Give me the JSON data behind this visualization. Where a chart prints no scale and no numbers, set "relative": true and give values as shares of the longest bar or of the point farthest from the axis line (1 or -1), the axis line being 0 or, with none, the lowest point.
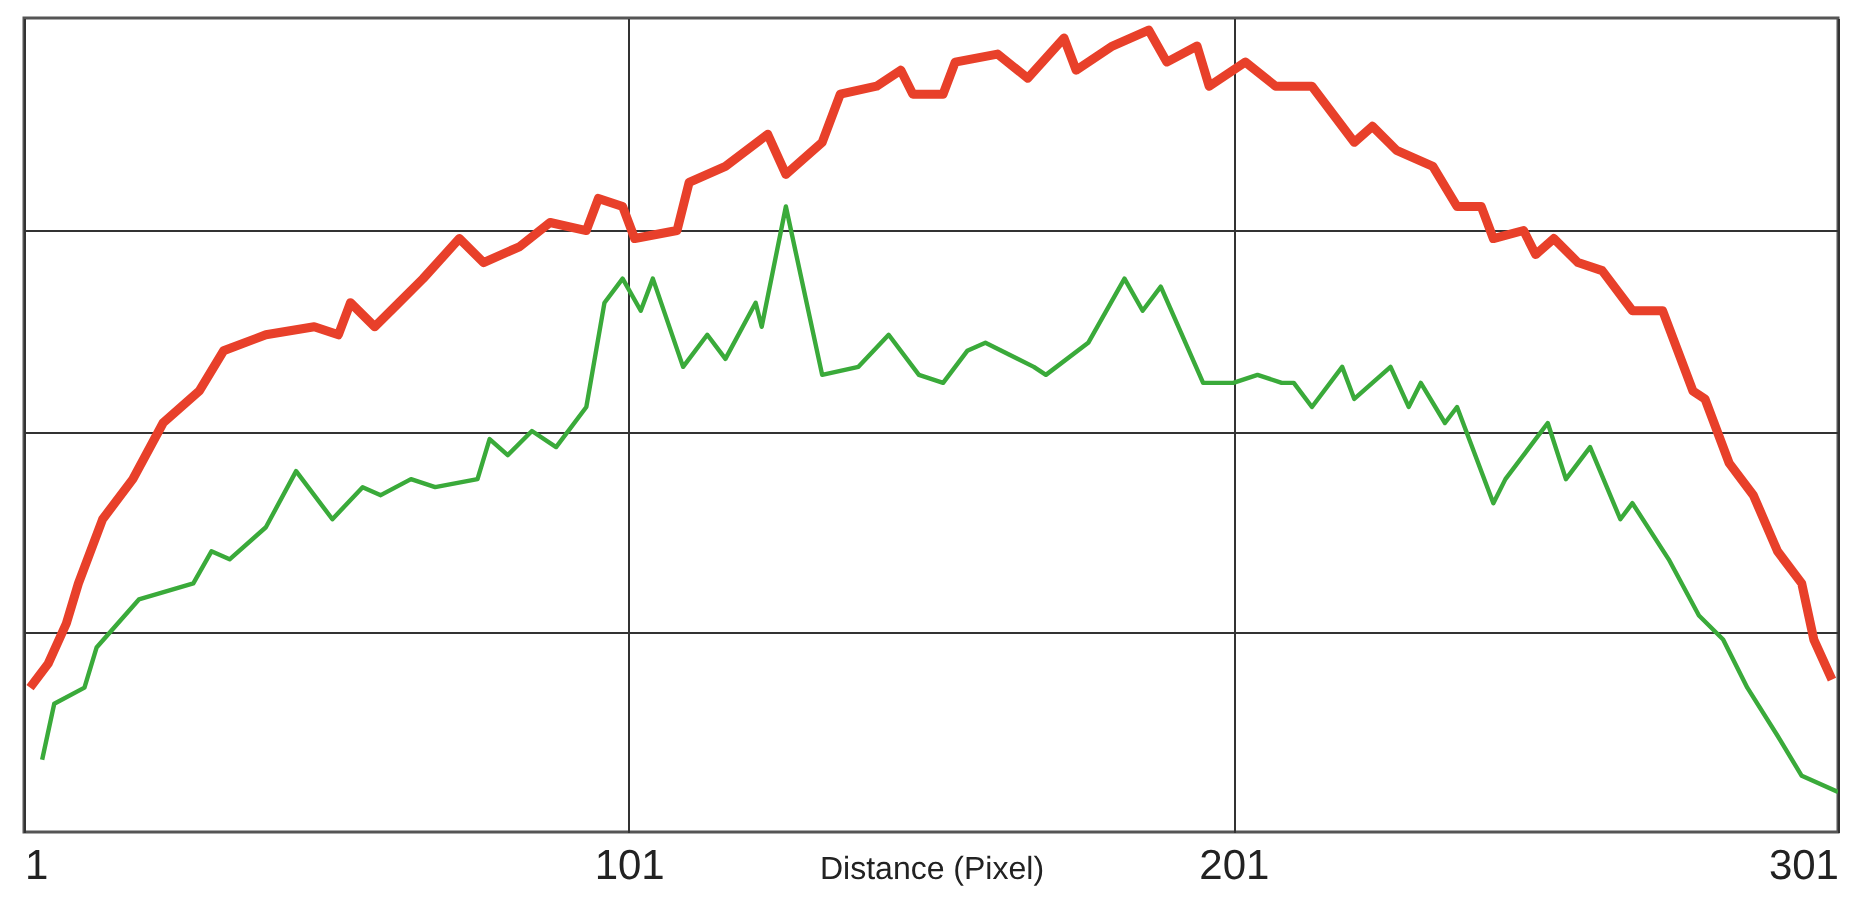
{
  "chart_data": {
    "type": "line",
    "xlabel": "Distance (Pixel)",
    "relative": true,
    "xlim": [
      1,
      301
    ],
    "xticks": [
      1,
      101,
      201,
      301
    ],
    "grid": true,
    "tick_labels": "x",
    "marker": "none",
    "line_style": "solid",
    "series": [
      {
        "color": "#e8402a",
        "x": [
          2,
          5,
          8,
          10,
          14,
          19,
          24,
          30,
          34,
          41,
          49,
          53,
          55,
          59,
          63,
          67,
          73,
          77,
          83,
          88,
          94,
          96,
          100,
          102,
          109,
          111,
          117,
          124,
          127,
          133,
          136,
          142,
          146,
          148,
          153,
          155,
          162,
          167,
          173,
          175,
          181,
          187,
          190,
          195,
          197,
          203,
          208,
          214,
          221,
          224,
          228,
          234,
          238,
          242,
          244,
          249,
          251,
          254,
          258,
          262,
          267,
          272,
          277,
          279,
          283,
          287,
          291,
          295,
          297,
          300
        ],
        "values": [
          0.18,
          0.21,
          0.26,
          0.31,
          0.39,
          0.44,
          0.51,
          0.55,
          0.6,
          0.62,
          0.63,
          0.62,
          0.66,
          0.63,
          0.66,
          0.69,
          0.74,
          0.71,
          0.73,
          0.76,
          0.75,
          0.79,
          0.78,
          0.74,
          0.75,
          0.81,
          0.83,
          0.87,
          0.82,
          0.86,
          0.92,
          0.93,
          0.95,
          0.92,
          0.92,
          0.96,
          0.97,
          0.94,
          0.99,
          0.95,
          0.98,
          1.0,
          0.96,
          0.98,
          0.93,
          0.96,
          0.93,
          0.93,
          0.86,
          0.88,
          0.85,
          0.83,
          0.78,
          0.78,
          0.74,
          0.75,
          0.72,
          0.74,
          0.71,
          0.7,
          0.65,
          0.65,
          0.55,
          0.54,
          0.46,
          0.42,
          0.35,
          0.31,
          0.24,
          0.19
        ]
      },
      {
        "color": "#3aaa3a",
        "x": [
          4,
          6,
          11,
          13,
          20,
          29,
          32,
          35,
          41,
          46,
          52,
          57,
          60,
          65,
          69,
          76,
          78,
          81,
          85,
          89,
          94,
          97,
          100,
          103,
          105,
          110,
          114,
          117,
          122,
          123,
          127,
          131,
          133,
          139,
          144,
          149,
          153,
          157,
          160,
          168,
          170,
          177,
          183,
          186,
          189,
          196,
          201,
          205,
          209,
          211,
          214,
          219,
          221,
          227,
          230,
          232,
          236,
          238,
          244,
          246,
          253,
          256,
          260,
          265,
          267,
          273,
          278,
          282,
          286,
          291,
          295,
          301
        ],
        "values": [
          0.09,
          0.16,
          0.18,
          0.23,
          0.29,
          0.31,
          0.35,
          0.34,
          0.38,
          0.45,
          0.39,
          0.43,
          0.42,
          0.44,
          0.43,
          0.44,
          0.49,
          0.47,
          0.5,
          0.48,
          0.53,
          0.66,
          0.69,
          0.65,
          0.69,
          0.58,
          0.62,
          0.59,
          0.66,
          0.63,
          0.78,
          0.64,
          0.57,
          0.58,
          0.62,
          0.57,
          0.56,
          0.6,
          0.61,
          0.58,
          0.57,
          0.61,
          0.69,
          0.65,
          0.68,
          0.56,
          0.56,
          0.57,
          0.56,
          0.56,
          0.53,
          0.58,
          0.54,
          0.58,
          0.53,
          0.56,
          0.51,
          0.53,
          0.41,
          0.44,
          0.51,
          0.44,
          0.48,
          0.39,
          0.41,
          0.34,
          0.27,
          0.24,
          0.18,
          0.12,
          0.07,
          0.05
        ]
      }
    ]
  }
}
